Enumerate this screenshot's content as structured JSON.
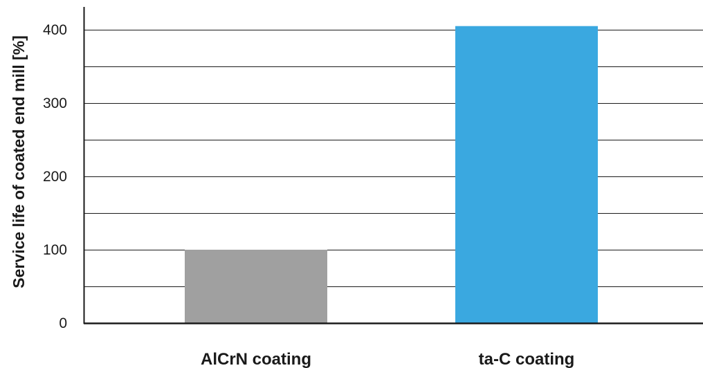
{
  "chart_data": {
    "type": "bar",
    "categories": [
      "AlCrN coating",
      "ta-C coating"
    ],
    "values": [
      100,
      405
    ],
    "colors": [
      "#a0a0a0",
      "#3aa8e0"
    ],
    "title": "",
    "xlabel": "",
    "ylabel": "Service life of coated end mill [%]",
    "ylim": [
      0,
      400
    ],
    "yticks": [
      "0",
      "100",
      "200",
      "300",
      "400"
    ],
    "gridlines_every": 50,
    "grid": true,
    "axis_color": "#1a1a1a",
    "grid_color": "#1a1a1a"
  }
}
